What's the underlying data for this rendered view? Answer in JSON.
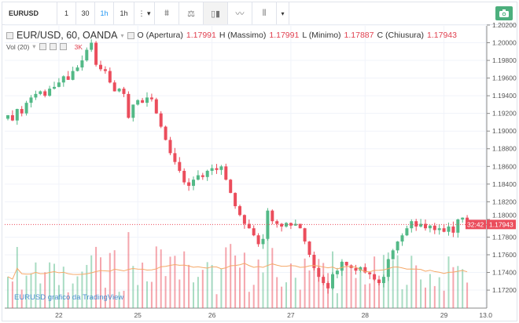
{
  "toolbar": {
    "symbol": "EURUSD",
    "intervals": [
      "1",
      "30",
      "1h",
      "1h"
    ],
    "active_interval": 2,
    "more": "⋮ ▾",
    "icons": [
      "indicators-icon",
      "compare-icon",
      "candles-icon",
      "line-chart-icon",
      "bars-icon",
      "dropdown-icon"
    ]
  },
  "legend": {
    "title": "EUR/USD, 60, OANDA",
    "o_label": "O (Apertura)",
    "o": "1.17991",
    "h_label": "H (Massimo)",
    "h": "1.17991",
    "l_label": "L (Minimo)",
    "l": "1.17887",
    "c_label": "C (Chiusura)",
    "c": "1.17943"
  },
  "volume": {
    "label": "Vol (20)",
    "value": "3K"
  },
  "watermark": "EURUSD grafico da TradingView",
  "price_label": "1.17943",
  "countdown": "32:42",
  "colors": {
    "up": "#53b987",
    "down": "#eb4d5c",
    "ma": "#f5a868",
    "accent": "#2196f3"
  },
  "chart_data": {
    "type": "candlestick",
    "y_ticks": [
      "1.20200",
      "1.20000",
      "1.19800",
      "1.19600",
      "1.19400",
      "1.19200",
      "1.19000",
      "1.18800",
      "1.18600",
      "1.18400",
      "1.18200",
      "1.18000",
      "1.17800",
      "1.17600",
      "1.17400",
      "1.17200"
    ],
    "x_ticks": [
      {
        "label": "22",
        "idx": 11
      },
      {
        "label": "25",
        "idx": 28
      },
      {
        "label": "26",
        "idx": 44
      },
      {
        "label": "27",
        "idx": 61
      },
      {
        "label": "28",
        "idx": 77
      },
      {
        "label": "29",
        "idx": 94
      },
      {
        "label": "13.0",
        "idx": 103
      }
    ],
    "ylim": [
      1.1705,
      1.2025
    ],
    "last_price": 1.17943,
    "closes": [
      1.1918,
      1.1912,
      1.1925,
      1.192,
      1.1932,
      1.1938,
      1.1942,
      1.1945,
      1.194,
      1.1948,
      1.195,
      1.1955,
      1.1962,
      1.1958,
      1.1968,
      1.1972,
      1.198,
      1.1992,
      1.2,
      1.1975,
      1.197,
      1.1968,
      1.1955,
      1.1945,
      1.1948,
      1.1942,
      1.1915,
      1.193,
      1.1935,
      1.1932,
      1.1938,
      1.1936,
      1.192,
      1.1905,
      1.189,
      1.1875,
      1.1865,
      1.1855,
      1.1842,
      1.1838,
      1.1845,
      1.185,
      1.1848,
      1.1855,
      1.1858,
      1.1856,
      1.186,
      1.1845,
      1.183,
      1.1815,
      1.1805,
      1.1795,
      1.179,
      1.1782,
      1.1772,
      1.1778,
      1.181,
      1.1798,
      1.1795,
      1.1792,
      1.1796,
      1.1793,
      1.1795,
      1.179,
      1.1775,
      1.176,
      1.1745,
      1.1735,
      1.1728,
      1.1722,
      1.1738,
      1.1742,
      1.1752,
      1.1748,
      1.1745,
      1.1742,
      1.1746,
      1.174,
      1.1738,
      1.1732,
      1.1728,
      1.1735,
      1.1755,
      1.1765,
      1.1775,
      1.1782,
      1.179,
      1.1798,
      1.1792,
      1.1795,
      1.179,
      1.1793,
      1.1788,
      1.179,
      1.1786,
      1.1792,
      1.1785,
      1.18,
      1.1802,
      1.17943
    ]
  }
}
